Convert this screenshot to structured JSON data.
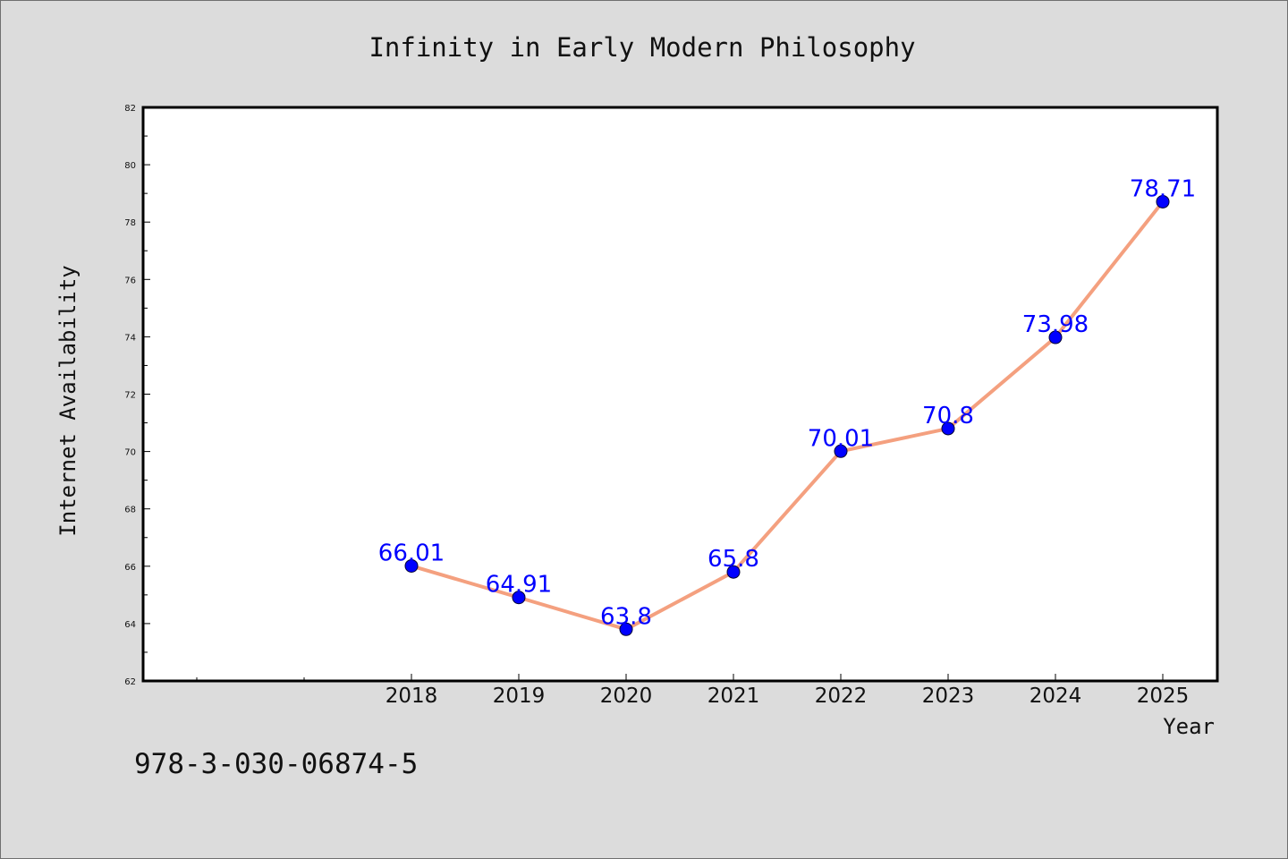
{
  "chart_data": {
    "type": "line",
    "title": "Infinity in Early Modern Philosophy",
    "xlabel": "Year",
    "ylabel": "Internet Availability",
    "categories": [
      "2018",
      "2019",
      "2020",
      "2021",
      "2022",
      "2023",
      "2024",
      "2025"
    ],
    "values": [
      66.01,
      64.91,
      63.8,
      65.8,
      70.01,
      70.8,
      73.98,
      78.71
    ],
    "data_labels": [
      "66.01",
      "64.91",
      "63.8",
      "65.8",
      "70.01",
      "70.8",
      "73.98",
      "78.71"
    ],
    "ylim": [
      62,
      82
    ],
    "yticks": [
      62,
      64,
      66,
      68,
      70,
      72,
      74,
      76,
      78,
      80,
      82
    ],
    "grid": false,
    "legend": "none",
    "line_color": "#f4a07f",
    "marker_color": "#0000ff",
    "label_color": "#0000ff",
    "annotation": "978-3-030-06874-5"
  }
}
